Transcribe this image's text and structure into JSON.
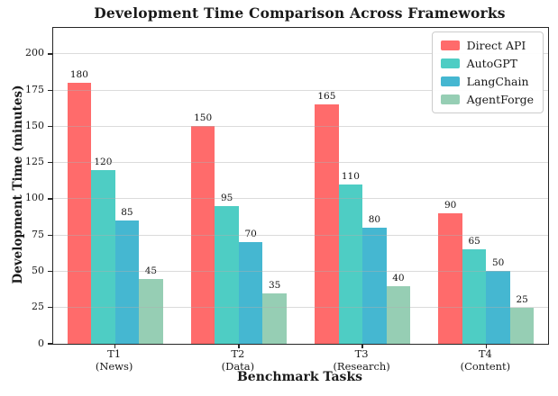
{
  "title": "Development Time Comparison Across Frameworks",
  "chart_data": {
    "type": "bar",
    "title": "Development Time Comparison Across Frameworks",
    "xlabel": "Benchmark Tasks",
    "ylabel": "Development Time (minutes)",
    "categories": [
      "T1",
      "T2",
      "T3",
      "T4"
    ],
    "category_sublabels": [
      "(News)",
      "(Data)",
      "(Research)",
      "(Content)"
    ],
    "series": [
      {
        "name": "Direct API",
        "color": "#FF6B6B",
        "values": [
          180,
          150,
          165,
          90
        ]
      },
      {
        "name": "AutoGPT",
        "color": "#4ECDC4",
        "values": [
          120,
          95,
          110,
          65
        ]
      },
      {
        "name": "LangChain",
        "color": "#45B7D1",
        "values": [
          85,
          70,
          80,
          50
        ]
      },
      {
        "name": "AgentForge",
        "color": "#96CEB4",
        "values": [
          45,
          35,
          40,
          25
        ]
      }
    ],
    "bar_labels": true,
    "yticks": [
      0,
      25,
      50,
      75,
      100,
      125,
      150,
      175,
      200
    ],
    "ylim": [
      0,
      218
    ],
    "grid": "horizontal",
    "legend_position": "upper right",
    "colors": {
      "grid": "#b0b0b0",
      "spine": "#262626",
      "background": "#ffffff",
      "text": "#1a1a1a"
    }
  }
}
